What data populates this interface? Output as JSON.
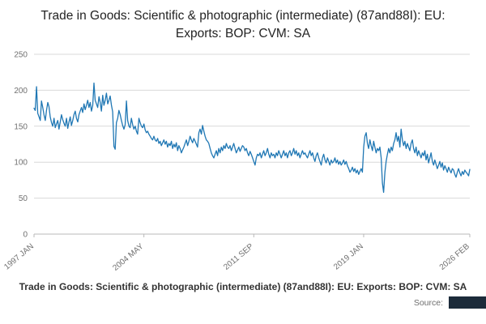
{
  "title": "Trade in Goods: Scientific & photographic (intermediate) (87and88I): EU: Exports: BOP: CVM: SA",
  "footer_caption": "Trade in Goods: Scientific & photographic (intermediate) (87and88I): EU: Exports: BOP: CVM: SA",
  "source_label": "Source:",
  "colors": {
    "line": "#1f77b4",
    "grid": "#d9d9d9",
    "axis_line": "#b8b8b8",
    "axis_text": "#707070",
    "title_text": "#232323",
    "logo_box": "#1c2b3a"
  },
  "chart_data": {
    "type": "line",
    "title": "Trade in Goods: Scientific & photographic (intermediate) (87and88I): EU: Exports: BOP: CVM: SA",
    "xlabel": "",
    "ylabel": "",
    "ylim": [
      0,
      250
    ],
    "y_ticks": [
      0,
      50,
      100,
      150,
      200,
      250
    ],
    "x_start": "1997-01",
    "x_end": "2026-02",
    "frequency": "monthly",
    "grid": "horizontal",
    "legend_position": "none",
    "x_ticks": [
      {
        "label": "1997 JAN",
        "month_index": 0
      },
      {
        "label": "2004 MAY",
        "month_index": 88
      },
      {
        "label": "2011 SEP",
        "month_index": 176
      },
      {
        "label": "2019 JAN",
        "month_index": 264
      },
      {
        "label": "2026 FEB",
        "month_index": 349
      }
    ],
    "values": [
      175,
      172,
      205,
      168,
      163,
      158,
      185,
      176,
      166,
      158,
      172,
      183,
      177,
      163,
      155,
      150,
      161,
      148,
      153,
      158,
      146,
      156,
      166,
      159,
      154,
      150,
      161,
      147,
      156,
      163,
      151,
      158,
      166,
      171,
      161,
      156,
      166,
      171,
      176,
      169,
      181,
      173,
      179,
      186,
      176,
      183,
      171,
      179,
      210,
      186,
      181,
      176,
      191,
      183,
      171,
      193,
      179,
      186,
      196,
      181,
      186,
      192,
      179,
      170,
      122,
      118,
      155,
      161,
      172,
      166,
      158,
      151,
      146,
      152,
      185,
      158,
      150,
      148,
      161,
      152,
      146,
      150,
      143,
      139,
      161,
      155,
      150,
      148,
      153,
      145,
      141,
      143,
      139,
      136,
      133,
      131,
      136,
      131,
      129,
      133,
      126,
      129,
      123,
      127,
      131,
      125,
      129,
      121,
      126,
      123,
      129,
      119,
      125,
      121,
      127,
      116,
      123,
      119,
      113,
      117,
      121,
      126,
      131,
      123,
      129,
      136,
      131,
      127,
      133,
      129,
      125,
      121,
      141,
      146,
      139,
      151,
      143,
      136,
      131,
      129,
      126,
      119,
      113,
      109,
      106,
      111,
      116,
      109,
      119,
      113,
      121,
      116,
      123,
      119,
      126,
      121,
      119,
      123,
      116,
      121,
      126,
      119,
      113,
      117,
      121,
      115,
      119,
      123,
      121,
      116,
      119,
      113,
      109,
      115,
      111,
      106,
      101,
      96,
      106,
      111,
      109,
      113,
      106,
      111,
      116,
      109,
      113,
      119,
      111,
      106,
      113,
      109,
      111,
      106,
      113,
      109,
      116,
      111,
      106,
      111,
      116,
      109,
      113,
      106,
      113,
      116,
      109,
      113,
      119,
      111,
      116,
      109,
      113,
      106,
      111,
      116,
      111,
      113,
      109,
      106,
      111,
      116,
      109,
      113,
      106,
      101,
      109,
      113,
      106,
      101,
      96,
      106,
      111,
      103,
      99,
      106,
      101,
      96,
      103,
      99,
      101,
      106,
      99,
      103,
      97,
      101,
      96,
      99,
      103,
      97,
      101,
      95,
      91,
      86,
      89,
      93,
      87,
      91,
      85,
      89,
      83,
      87,
      91,
      86,
      121,
      136,
      141,
      126,
      119,
      131,
      123,
      116,
      129,
      121,
      113,
      119,
      116,
      121,
      106,
      71,
      58,
      86,
      101,
      111,
      119,
      113,
      121,
      116,
      126,
      131,
      141,
      129,
      136,
      121,
      146,
      131,
      123,
      129,
      119,
      126,
      121,
      116,
      126,
      131,
      119,
      113,
      121,
      109,
      116,
      111,
      106,
      113,
      109,
      116,
      103,
      111,
      99,
      106,
      113,
      101,
      96,
      103,
      97,
      91,
      96,
      101,
      93,
      99,
      89,
      95,
      91,
      86,
      93,
      89,
      85,
      91,
      89,
      83,
      79,
      86,
      91,
      85,
      81,
      87,
      83,
      89,
      86,
      84,
      81,
      90
    ]
  }
}
